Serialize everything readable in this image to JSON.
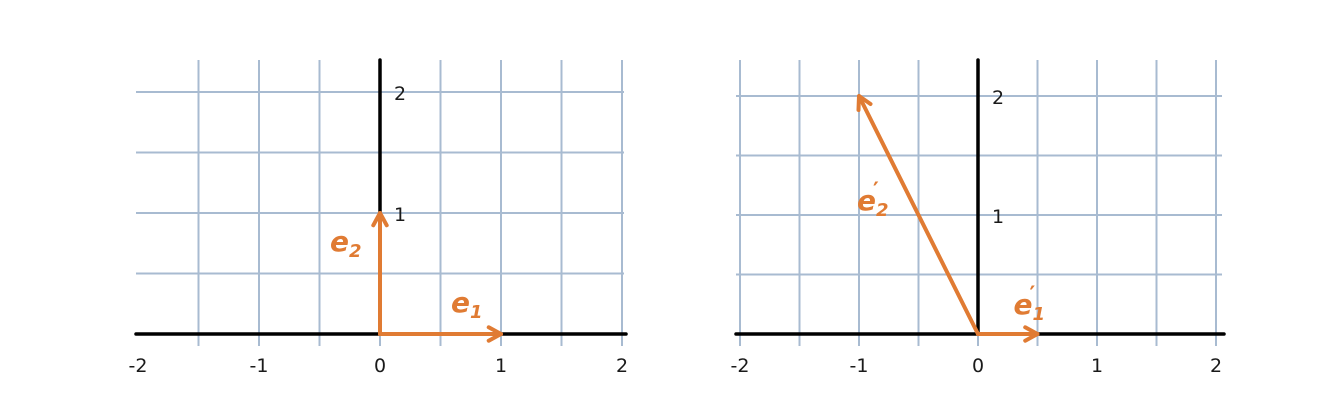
{
  "colors": {
    "grid": "#a8bbd1",
    "axis": "#000000",
    "vector": "#e07b33",
    "text": "#1a1a1a"
  },
  "panels": [
    {
      "x_ticks": [
        "-2",
        "-1",
        "0",
        "1",
        "2"
      ],
      "y_ticks": [
        "1",
        "2"
      ],
      "x_range": [
        -2,
        2
      ],
      "y_range": [
        0,
        2
      ],
      "vectors": [
        {
          "label": "e",
          "subscript": "1",
          "prime": false,
          "x": 1,
          "y": 0
        },
        {
          "label": "e",
          "subscript": "2",
          "prime": false,
          "x": 0,
          "y": 1
        }
      ]
    },
    {
      "x_ticks": [
        "-2",
        "-1",
        "0",
        "1",
        "2"
      ],
      "y_ticks": [
        "1",
        "2"
      ],
      "x_range": [
        -2,
        2
      ],
      "y_range": [
        0,
        2
      ],
      "vectors": [
        {
          "label": "e",
          "subscript": "1",
          "prime": true,
          "x": 0.5,
          "y": 0
        },
        {
          "label": "e",
          "subscript": "2",
          "prime": true,
          "x": -1,
          "y": 2
        }
      ]
    }
  ]
}
